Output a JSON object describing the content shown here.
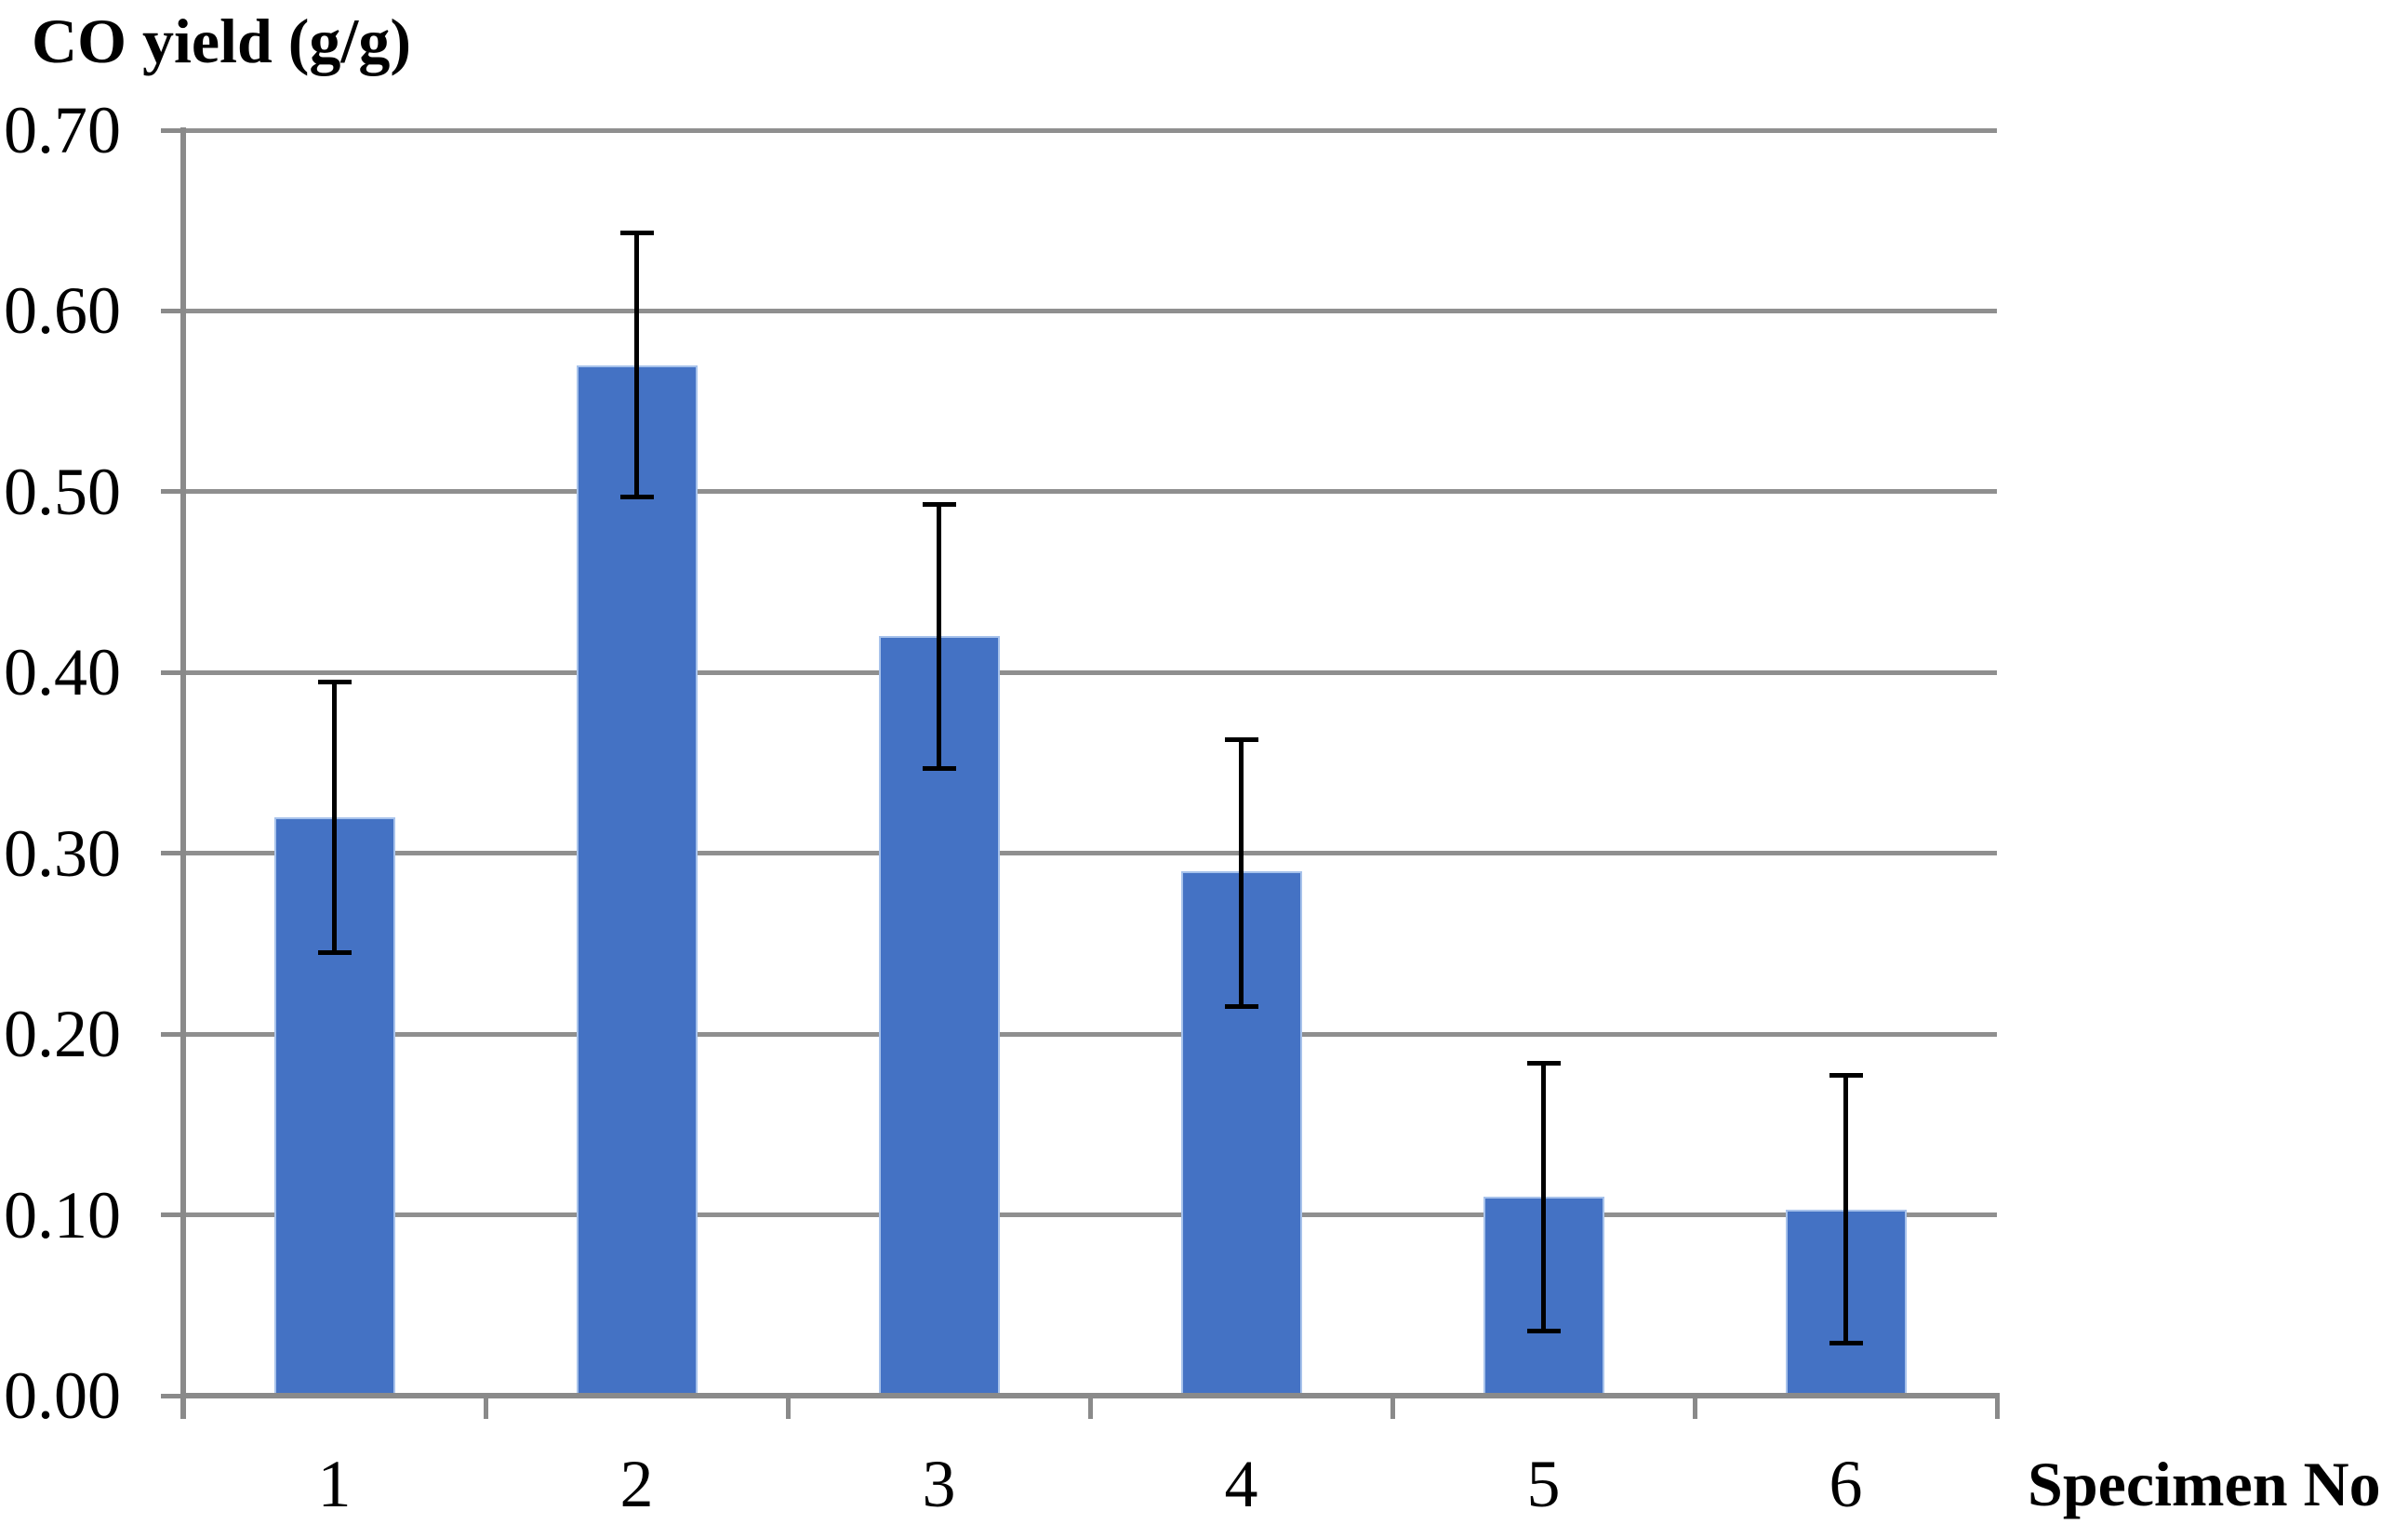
{
  "chart_data": {
    "type": "bar",
    "title": "CO yield (g/g)",
    "ylabel": "CO yield (g/g)",
    "xlabel": "Specimen No",
    "categories": [
      "1",
      "2",
      "3",
      "4",
      "5",
      "6"
    ],
    "values": [
      0.32,
      0.57,
      0.42,
      0.29,
      0.11,
      0.103
    ],
    "error_bars": [
      {
        "low": 0.245,
        "high": 0.395
      },
      {
        "low": 0.497,
        "high": 0.643
      },
      {
        "low": 0.347,
        "high": 0.493
      },
      {
        "low": 0.215,
        "high": 0.363
      },
      {
        "low": 0.036,
        "high": 0.184
      },
      {
        "low": 0.029,
        "high": 0.177
      }
    ],
    "y_ticks": [
      "0.00",
      "0.10",
      "0.20",
      "0.30",
      "0.40",
      "0.50",
      "0.60",
      "0.70"
    ],
    "y_tick_values": [
      0.0,
      0.1,
      0.2,
      0.3,
      0.4,
      0.5,
      0.6,
      0.7
    ],
    "ylim": [
      0.0,
      0.7
    ],
    "grid": true,
    "legend": false,
    "colors": {
      "bar_fill": "#4472C4",
      "bar_border": "#A7C2EB",
      "axis": "#8A8A8A",
      "gridline": "#8F8F8F",
      "error_bar": "#000000",
      "text": "#000000",
      "background": "#FFFFFF"
    }
  }
}
